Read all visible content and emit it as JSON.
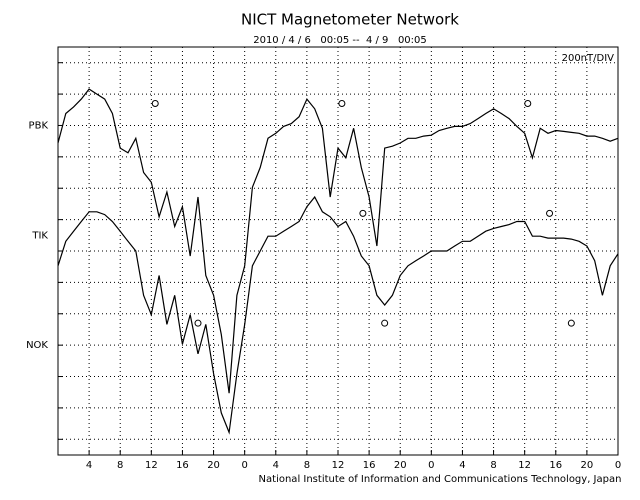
{
  "chart_data": {
    "type": "line",
    "title": "NICT Magnetometer Network",
    "subtitle": "2010 / 4 / 6   00:05 --  4 / 9   00:05",
    "scale_label": "200nT/DIV",
    "footer": "National Institute of Information and Communications Technology, Japan",
    "x": [
      0,
      1,
      2,
      3,
      4,
      5,
      6,
      7,
      8,
      9,
      10,
      11,
      12,
      13,
      14,
      15,
      16,
      17,
      18,
      19,
      20,
      21,
      22,
      23,
      24,
      25,
      26,
      27,
      28,
      29,
      30,
      31,
      32,
      33,
      34,
      35,
      36,
      37,
      38,
      39,
      40,
      41,
      42,
      43,
      44,
      45,
      46,
      47,
      48,
      49,
      50,
      51,
      52,
      53,
      54,
      55,
      56,
      57,
      58,
      59,
      60,
      61,
      62,
      63,
      64,
      65,
      66,
      67,
      68,
      69,
      70,
      71,
      72
    ],
    "series": [
      {
        "color": "#000000",
        "values": [
          9.44,
          10.38,
          10.59,
          10.84,
          11.16,
          11,
          10.84,
          10.38,
          9.28,
          9.13,
          9.59,
          8.5,
          8.19,
          7.09,
          7.88,
          6.78,
          7.41,
          5.84,
          7.72,
          5.22,
          4.59,
          3.34,
          1.47,
          4.59,
          5.53,
          8.03,
          8.66,
          9.59,
          9.75,
          9.97,
          10.06,
          10.28,
          10.84,
          10.53,
          9.91,
          7.72,
          9.28,
          8.97,
          9.91,
          8.66,
          7.72,
          6.16,
          9.28,
          9.34,
          9.44,
          9.59,
          9.59,
          9.66,
          9.69,
          9.84,
          9.91,
          9.97,
          9.97,
          10.06,
          10.22,
          10.38,
          10.53,
          10.38,
          10.22,
          9.97,
          9.75,
          8.97,
          9.91,
          9.75,
          9.84,
          9.81,
          9.78,
          9.75,
          9.66,
          9.66,
          9.59,
          9.5,
          9.59
        ]
      },
      {
        "color": "#000000",
        "values": [
          5.53,
          6.31,
          6.63,
          6.94,
          7.25,
          7.25,
          7.16,
          6.94,
          6.63,
          6.31,
          6,
          4.59,
          3.97,
          5.22,
          3.66,
          4.59,
          3.03,
          3.97,
          2.72,
          3.66,
          2.09,
          0.84,
          0.22,
          2.09,
          3.66,
          5.53,
          6,
          6.47,
          6.47,
          6.63,
          6.78,
          6.94,
          7.41,
          7.72,
          7.25,
          7.09,
          6.78,
          6.94,
          6.47,
          5.84,
          5.53,
          4.59,
          4.28,
          4.59,
          5.22,
          5.53,
          5.69,
          5.84,
          6,
          6,
          6,
          6.16,
          6.31,
          6.31,
          6.47,
          6.63,
          6.72,
          6.78,
          6.84,
          6.94,
          6.94,
          6.47,
          6.47,
          6.41,
          6.41,
          6.41,
          6.38,
          6.31,
          6.16,
          5.69,
          4.59,
          5.53,
          5.91
        ]
      }
    ],
    "markers": {
      "x": [
        12.5,
        36.5,
        60.4,
        39.2,
        63.2,
        18,
        42,
        66
      ],
      "y": [
        10.7,
        10.7,
        10.7,
        7.2,
        7.2,
        3.7,
        3.7,
        3.7
      ]
    },
    "xlim": [
      0,
      72
    ],
    "xticks": [
      4,
      8,
      12,
      16,
      20,
      {
        "value": 24,
        "label": "0"
      },
      {
        "value": 28,
        "label": "4"
      },
      {
        "value": 32,
        "label": "8"
      },
      {
        "value": 36,
        "label": "12"
      },
      {
        "value": 40,
        "label": "16"
      },
      {
        "value": 44,
        "label": "20"
      },
      {
        "value": 48,
        "label": "0"
      },
      {
        "value": 52,
        "label": "4"
      },
      {
        "value": 56,
        "label": "8"
      },
      {
        "value": 60,
        "label": "12"
      },
      {
        "value": 64,
        "label": "16"
      },
      {
        "value": 68,
        "label": "20"
      },
      {
        "value": 72,
        "label": "0"
      }
    ],
    "ylim": [
      -0.5,
      12.5
    ],
    "yticks": [
      {
        "value": 10,
        "label": "PBK"
      },
      {
        "value": 6.5,
        "label": "TIK"
      },
      {
        "value": 3,
        "label": "NOK"
      }
    ],
    "minor_yticks": [
      0,
      1,
      2,
      3,
      4,
      5,
      6,
      7,
      8,
      9,
      10,
      11,
      12
    ],
    "grid": true
  }
}
